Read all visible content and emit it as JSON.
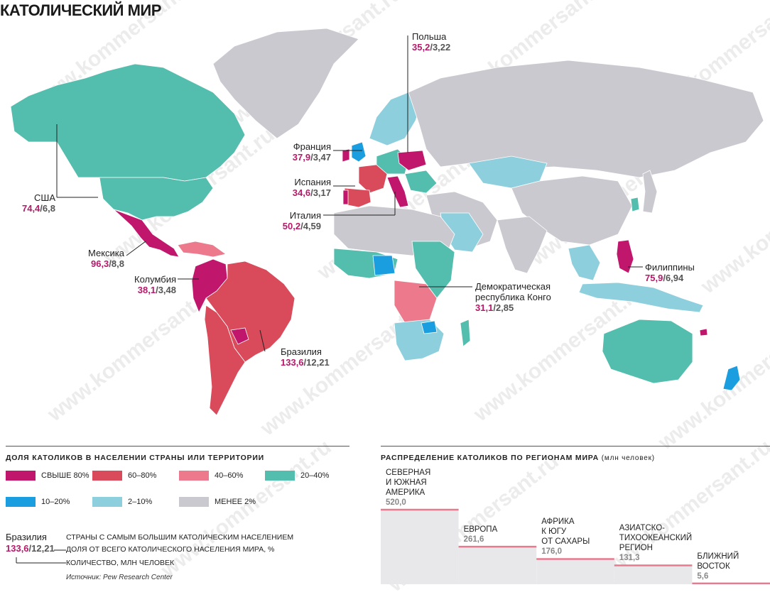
{
  "title": "КАТОЛИЧЕСКИЙ МИР",
  "watermark": "www.kommersant.ru",
  "colors": {
    "over80": "#c0176c",
    "60_80": "#d94a5a",
    "40_60": "#ec7a8c",
    "20_40": "#53bdae",
    "10_20": "#1a9ee0",
    "2_10": "#8ecfdd",
    "under2": "#c9c9cf",
    "ocean": "#ffffff"
  },
  "callouts": [
    {
      "name": "США",
      "pct": "74,4",
      "mln": "6,8"
    },
    {
      "name": "Мексика",
      "pct": "96,3",
      "mln": "8,8"
    },
    {
      "name": "Колумбия",
      "pct": "38,1",
      "mln": "3,48"
    },
    {
      "name": "Бразилия",
      "pct": "133,6",
      "mln": "12,21"
    },
    {
      "name": "Польша",
      "pct": "35,2",
      "mln": "3,22"
    },
    {
      "name": "Франция",
      "pct": "37,9",
      "mln": "3,47"
    },
    {
      "name": "Испания",
      "pct": "34,6",
      "mln": "3,17"
    },
    {
      "name": "Италия",
      "pct": "50,2",
      "mln": "4,59"
    },
    {
      "name": "Демократическая республика Конго",
      "pct": "31,1",
      "mln": "2,85"
    },
    {
      "name": "Филиппины",
      "pct": "75,9",
      "mln": "6,94"
    }
  ],
  "legend": {
    "title": "ДОЛЯ КАТОЛИКОВ В НАСЕЛЕНИИ СТРАНЫ ИЛИ ТЕРРИТОРИИ",
    "items": [
      {
        "label": "СВЫШЕ 80%",
        "color_key": "over80"
      },
      {
        "label": "60–80%",
        "color_key": "60_80"
      },
      {
        "label": "40–60%",
        "color_key": "40_60"
      },
      {
        "label": "20–40%",
        "color_key": "20_40"
      },
      {
        "label": "10–20%",
        "color_key": "10_20"
      },
      {
        "label": "2–10%",
        "color_key": "2_10"
      },
      {
        "label": "МЕНЕЕ 2%",
        "color_key": "under2"
      }
    ]
  },
  "example": {
    "country": "Бразилия",
    "pct": "133,6",
    "mln": "12,21",
    "note1": "СТРАНЫ С САМЫМ БОЛЬШИМ КАТОЛИЧЕСКИМ НАСЕЛЕНИЕМ",
    "note2": "ДОЛЯ ОТ ВСЕГО КАТОЛИЧЕСКОГО НАСЕЛЕНИЯ МИРА, %",
    "note3": "КОЛИЧЕСТВО, МЛН ЧЕЛОВЕК"
  },
  "source": "Источник: Pew Research Center",
  "regions_chart": {
    "title": "РАСПРЕДЕЛЕНИЕ КАТОЛИКОВ ПО РЕГИОНАМ МИРА",
    "title_unit": "(млн человек)",
    "bars": [
      {
        "label": [
          "СЕВЕРНАЯ",
          "И ЮЖНАЯ",
          "АМЕРИКА"
        ],
        "value": 520.0,
        "value_text": "520,0"
      },
      {
        "label": [
          "ЕВРОПА"
        ],
        "value": 261.6,
        "value_text": "261,6"
      },
      {
        "label": [
          "АФРИКА",
          "К ЮГУ",
          "ОТ САХАРЫ"
        ],
        "value": 176.0,
        "value_text": "176,0"
      },
      {
        "label": [
          "АЗИАТСКО-",
          "ТИХООКЕАНСКИЙ",
          "РЕГИОН"
        ],
        "value": 131.3,
        "value_text": "131,3"
      },
      {
        "label": [
          "БЛИЖНИЙ",
          "ВОСТОК"
        ],
        "value": 5.6,
        "value_text": "5,6"
      }
    ],
    "bar_fill": "#e8e8ea",
    "bar_top_line": "#e87a90"
  }
}
